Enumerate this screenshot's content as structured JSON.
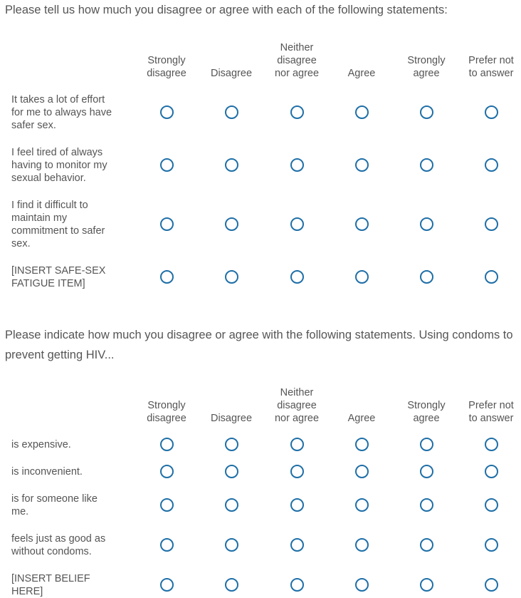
{
  "matrix1": {
    "question": "Please tell us how much you disagree or agree with each of the following statements:",
    "columns": [
      [
        "Strongly",
        "disagree"
      ],
      [
        "Disagree"
      ],
      [
        "Neither",
        "disagree",
        "nor agree"
      ],
      [
        "Agree"
      ],
      [
        "Strongly",
        "agree"
      ],
      [
        "Prefer not",
        "to answer"
      ]
    ],
    "rows": [
      [
        "It takes a lot of effort",
        "for me to always have",
        "safer sex."
      ],
      [
        "I feel tired of always",
        "having to monitor my",
        "sexual behavior."
      ],
      [
        "I find it difficult to",
        "maintain my",
        "commitment to safer",
        "sex."
      ],
      [
        "[INSERT SAFE-SEX",
        "FATIGUE ITEM]"
      ]
    ]
  },
  "matrix2": {
    "question": "Please indicate how much you disagree or agree with the following statements. Using condoms to prevent getting HIV...",
    "columns": [
      [
        "Strongly",
        "disagree"
      ],
      [
        "Disagree"
      ],
      [
        "Neither",
        "disagree",
        "nor agree"
      ],
      [
        "Agree"
      ],
      [
        "Strongly",
        "agree"
      ],
      [
        "Prefer not",
        "to answer"
      ]
    ],
    "rows": [
      [
        "is expensive."
      ],
      [
        "is inconvenient."
      ],
      [
        "is for someone like",
        "me."
      ],
      [
        "feels just as good as",
        "without condoms."
      ],
      [
        "[INSERT BELIEF",
        "HERE]"
      ]
    ]
  },
  "colors": {
    "radio_border": "#1f6fa7",
    "text": "#555555"
  }
}
